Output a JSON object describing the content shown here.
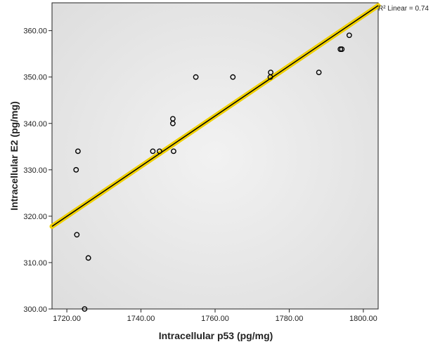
{
  "chart_data": {
    "type": "scatter",
    "title": "",
    "xlabel": "Intracellular p53  (pg/mg)",
    "ylabel": "Intracellular E2  (pg/mg)",
    "xlim": [
      1716,
      1804
    ],
    "ylim": [
      300,
      366
    ],
    "xticks": [
      1720,
      1740,
      1760,
      1780,
      1800
    ],
    "yticks": [
      300,
      310,
      320,
      330,
      340,
      350,
      360
    ],
    "xtick_labels": [
      "1720.00",
      "1740.00",
      "1760.00",
      "1780.00",
      "1800.00"
    ],
    "ytick_labels": [
      "300.00",
      "310.00",
      "320.00",
      "330.00",
      "340.00",
      "350.00",
      "360.00"
    ],
    "grid": false,
    "points": [
      {
        "x": 1722.5,
        "y": 330
      },
      {
        "x": 1723,
        "y": 334
      },
      {
        "x": 1722.7,
        "y": 316
      },
      {
        "x": 1725.8,
        "y": 311
      },
      {
        "x": 1724.8,
        "y": 300
      },
      {
        "x": 1743.2,
        "y": 334
      },
      {
        "x": 1745,
        "y": 334
      },
      {
        "x": 1748.6,
        "y": 341
      },
      {
        "x": 1748.6,
        "y": 340
      },
      {
        "x": 1748.8,
        "y": 334
      },
      {
        "x": 1754.8,
        "y": 350
      },
      {
        "x": 1764.8,
        "y": 350
      },
      {
        "x": 1775,
        "y": 351
      },
      {
        "x": 1774.9,
        "y": 350
      },
      {
        "x": 1788,
        "y": 351
      },
      {
        "x": 1793.8,
        "y": 356
      },
      {
        "x": 1794.2,
        "y": 356
      },
      {
        "x": 1796.2,
        "y": 359
      }
    ],
    "fit_line": {
      "x1": 1716,
      "y1": 317.8,
      "x2": 1804,
      "y2": 365.4
    },
    "annotation": "R² Linear = 0.74",
    "colors": {
      "plot_background": "#e8e8e8",
      "fit_line": "#000000",
      "fit_highlight": "#f0d000",
      "points": "#000000"
    }
  }
}
